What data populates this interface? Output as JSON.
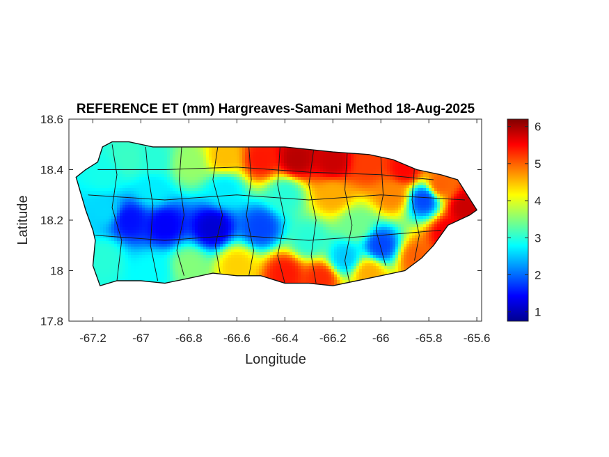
{
  "chart_data": {
    "type": "heatmap",
    "title": "REFERENCE ET (mm) Hargreaves-Samani Method  18-Aug-2025",
    "xlabel": "Longitude",
    "ylabel": "Latitude",
    "xlim": [
      -67.3,
      -65.58
    ],
    "ylim": [
      17.8,
      18.6
    ],
    "x_ticks": [
      -67.2,
      -67,
      -66.8,
      -66.6,
      -66.4,
      -66.2,
      -66,
      -65.8,
      -65.6
    ],
    "x_tick_labels": [
      "-67.2",
      "-67",
      "-66.8",
      "-66.6",
      "-66.4",
      "-66.2",
      "-66",
      "-65.8",
      "-65.6"
    ],
    "y_ticks": [
      17.8,
      18,
      18.2,
      18.4,
      18.6
    ],
    "y_tick_labels": [
      "17.8",
      "18",
      "18.2",
      "18.4",
      "18.6"
    ],
    "colorbar": {
      "colormap": "jet",
      "range": [
        0.75,
        6.2
      ],
      "ticks": [
        1,
        2,
        3,
        4,
        5,
        6
      ],
      "tick_labels": [
        "1",
        "2",
        "3",
        "4",
        "5",
        "6"
      ]
    },
    "grid": false,
    "region": "Puerto Rico",
    "outline_lonlat": [
      [
        -67.27,
        18.37
      ],
      [
        -67.23,
        18.4
      ],
      [
        -67.18,
        18.43
      ],
      [
        -67.16,
        18.49
      ],
      [
        -67.12,
        18.51
      ],
      [
        -67.05,
        18.51
      ],
      [
        -66.95,
        18.49
      ],
      [
        -66.8,
        18.49
      ],
      [
        -66.6,
        18.49
      ],
      [
        -66.4,
        18.49
      ],
      [
        -66.2,
        18.47
      ],
      [
        -66.05,
        18.46
      ],
      [
        -65.95,
        18.44
      ],
      [
        -65.85,
        18.4
      ],
      [
        -65.75,
        18.38
      ],
      [
        -65.68,
        18.36
      ],
      [
        -65.62,
        18.27
      ],
      [
        -65.6,
        18.24
      ],
      [
        -65.63,
        18.22
      ],
      [
        -65.72,
        18.18
      ],
      [
        -65.78,
        18.1
      ],
      [
        -65.83,
        18.05
      ],
      [
        -65.9,
        18.0
      ],
      [
        -66.0,
        17.98
      ],
      [
        -66.2,
        17.94
      ],
      [
        -66.3,
        17.95
      ],
      [
        -66.4,
        17.95
      ],
      [
        -66.5,
        17.98
      ],
      [
        -66.6,
        17.98
      ],
      [
        -66.7,
        17.99
      ],
      [
        -66.8,
        17.97
      ],
      [
        -66.9,
        17.95
      ],
      [
        -67.0,
        17.96
      ],
      [
        -67.1,
        17.96
      ],
      [
        -67.17,
        17.94
      ],
      [
        -67.2,
        18.02
      ],
      [
        -67.19,
        18.12
      ],
      [
        -67.2,
        18.16
      ],
      [
        -67.23,
        18.24
      ],
      [
        -67.27,
        18.37
      ]
    ],
    "et_sources": [
      {
        "lon": -67.15,
        "lat": 18.38,
        "et": 2.9
      },
      {
        "lon": -67.05,
        "lat": 18.44,
        "et": 3.1
      },
      {
        "lon": -66.95,
        "lat": 18.44,
        "et": 3.0
      },
      {
        "lon": -66.8,
        "lat": 18.42,
        "et": 3.6
      },
      {
        "lon": -66.65,
        "lat": 18.45,
        "et": 4.5
      },
      {
        "lon": -66.5,
        "lat": 18.44,
        "et": 5.4
      },
      {
        "lon": -66.35,
        "lat": 18.44,
        "et": 5.9
      },
      {
        "lon": -66.2,
        "lat": 18.43,
        "et": 5.8
      },
      {
        "lon": -66.05,
        "lat": 18.42,
        "et": 5.2
      },
      {
        "lon": -65.9,
        "lat": 18.4,
        "et": 5.5
      },
      {
        "lon": -65.75,
        "lat": 18.34,
        "et": 5.0
      },
      {
        "lon": -65.65,
        "lat": 18.25,
        "et": 5.8
      },
      {
        "lon": -65.82,
        "lat": 18.28,
        "et": 1.8
      },
      {
        "lon": -65.95,
        "lat": 18.3,
        "et": 4.8
      },
      {
        "lon": -65.72,
        "lat": 18.15,
        "et": 5.6
      },
      {
        "lon": -65.85,
        "lat": 18.05,
        "et": 5.0
      },
      {
        "lon": -66.0,
        "lat": 18.1,
        "et": 1.8
      },
      {
        "lon": -66.1,
        "lat": 18.18,
        "et": 3.4
      },
      {
        "lon": -66.15,
        "lat": 18.05,
        "et": 2.5
      },
      {
        "lon": -66.3,
        "lat": 18.12,
        "et": 3.0
      },
      {
        "lon": -66.4,
        "lat": 17.99,
        "et": 5.4
      },
      {
        "lon": -66.6,
        "lat": 18.02,
        "et": 4.4
      },
      {
        "lon": -66.8,
        "lat": 18.02,
        "et": 3.5
      },
      {
        "lon": -66.5,
        "lat": 18.17,
        "et": 1.8
      },
      {
        "lon": -66.7,
        "lat": 18.17,
        "et": 1.2
      },
      {
        "lon": -66.9,
        "lat": 18.18,
        "et": 1.4
      },
      {
        "lon": -67.05,
        "lat": 18.2,
        "et": 1.5
      },
      {
        "lon": -67.15,
        "lat": 18.24,
        "et": 2.6
      },
      {
        "lon": -67.15,
        "lat": 18.05,
        "et": 3.0
      },
      {
        "lon": -66.95,
        "lat": 18.0,
        "et": 2.8
      },
      {
        "lon": -66.4,
        "lat": 18.3,
        "et": 3.0
      },
      {
        "lon": -66.2,
        "lat": 18.3,
        "et": 4.6
      },
      {
        "lon": -66.65,
        "lat": 18.32,
        "et": 2.7
      },
      {
        "lon": -66.95,
        "lat": 18.32,
        "et": 2.7
      },
      {
        "lon": -66.25,
        "lat": 17.97,
        "et": 5.3
      },
      {
        "lon": -66.05,
        "lat": 17.99,
        "et": 4.6
      }
    ]
  }
}
